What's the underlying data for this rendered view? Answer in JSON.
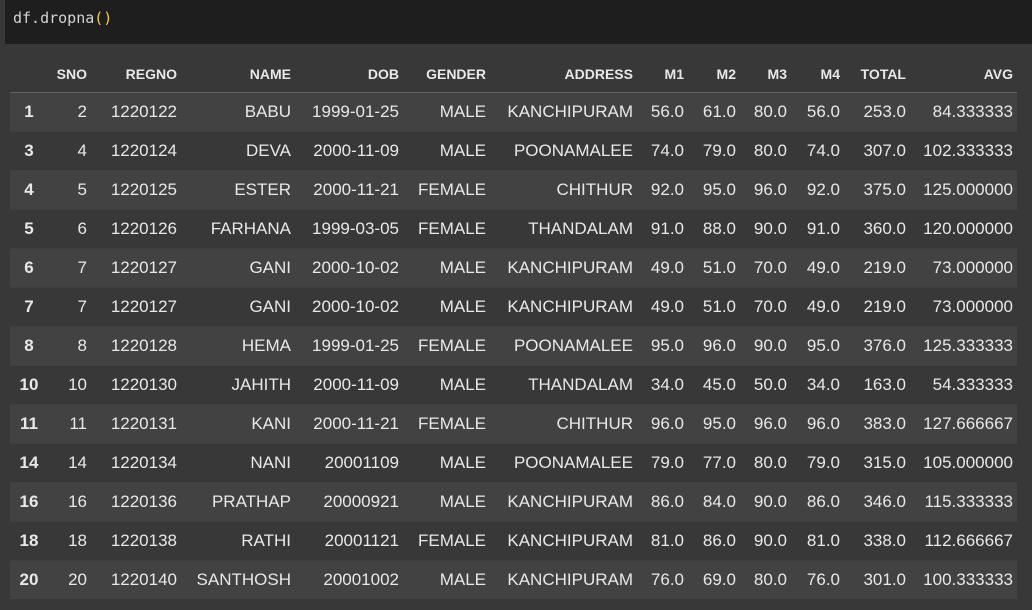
{
  "code_cell": {
    "prefix": "df.dropna",
    "parens": "()"
  },
  "table": {
    "columns": [
      "",
      "SNO",
      "REGNO",
      "NAME",
      "DOB",
      "GENDER",
      "ADDRESS",
      "M1",
      "M2",
      "M3",
      "M4",
      "TOTAL",
      "AVG"
    ],
    "rows": [
      [
        "1",
        "2",
        "1220122",
        "BABU",
        "1999-01-25",
        "MALE",
        "KANCHIPURAM",
        "56.0",
        "61.0",
        "80.0",
        "56.0",
        "253.0",
        "84.333333"
      ],
      [
        "3",
        "4",
        "1220124",
        "DEVA",
        "2000-11-09",
        "MALE",
        "POONAMALEE",
        "74.0",
        "79.0",
        "80.0",
        "74.0",
        "307.0",
        "102.333333"
      ],
      [
        "4",
        "5",
        "1220125",
        "ESTER",
        "2000-11-21",
        "FEMALE",
        "CHITHUR",
        "92.0",
        "95.0",
        "96.0",
        "92.0",
        "375.0",
        "125.000000"
      ],
      [
        "5",
        "6",
        "1220126",
        "FARHANA",
        "1999-03-05",
        "FEMALE",
        "THANDALAM",
        "91.0",
        "88.0",
        "90.0",
        "91.0",
        "360.0",
        "120.000000"
      ],
      [
        "6",
        "7",
        "1220127",
        "GANI",
        "2000-10-02",
        "MALE",
        "KANCHIPURAM",
        "49.0",
        "51.0",
        "70.0",
        "49.0",
        "219.0",
        "73.000000"
      ],
      [
        "7",
        "7",
        "1220127",
        "GANI",
        "2000-10-02",
        "MALE",
        "KANCHIPURAM",
        "49.0",
        "51.0",
        "70.0",
        "49.0",
        "219.0",
        "73.000000"
      ],
      [
        "8",
        "8",
        "1220128",
        "HEMA",
        "1999-01-25",
        "FEMALE",
        "POONAMALEE",
        "95.0",
        "96.0",
        "90.0",
        "95.0",
        "376.0",
        "125.333333"
      ],
      [
        "10",
        "10",
        "1220130",
        "JAHITH",
        "2000-11-09",
        "MALE",
        "THANDALAM",
        "34.0",
        "45.0",
        "50.0",
        "34.0",
        "163.0",
        "54.333333"
      ],
      [
        "11",
        "11",
        "1220131",
        "KANI",
        "2000-11-21",
        "FEMALE",
        "CHITHUR",
        "96.0",
        "95.0",
        "96.0",
        "96.0",
        "383.0",
        "127.666667"
      ],
      [
        "14",
        "14",
        "1220134",
        "NANI",
        "20001109",
        "MALE",
        "POONAMALEE",
        "79.0",
        "77.0",
        "80.0",
        "79.0",
        "315.0",
        "105.000000"
      ],
      [
        "16",
        "16",
        "1220136",
        "PRATHAP",
        "20000921",
        "MALE",
        "KANCHIPURAM",
        "86.0",
        "84.0",
        "90.0",
        "86.0",
        "346.0",
        "115.333333"
      ],
      [
        "18",
        "18",
        "1220138",
        "RATHI",
        "20001121",
        "FEMALE",
        "KANCHIPURAM",
        "81.0",
        "86.0",
        "90.0",
        "81.0",
        "338.0",
        "112.666667"
      ],
      [
        "20",
        "20",
        "1220140",
        "SANTHOSH",
        "20001002",
        "MALE",
        "KANCHIPURAM",
        "76.0",
        "69.0",
        "80.0",
        "76.0",
        "301.0",
        "100.333333"
      ]
    ]
  }
}
